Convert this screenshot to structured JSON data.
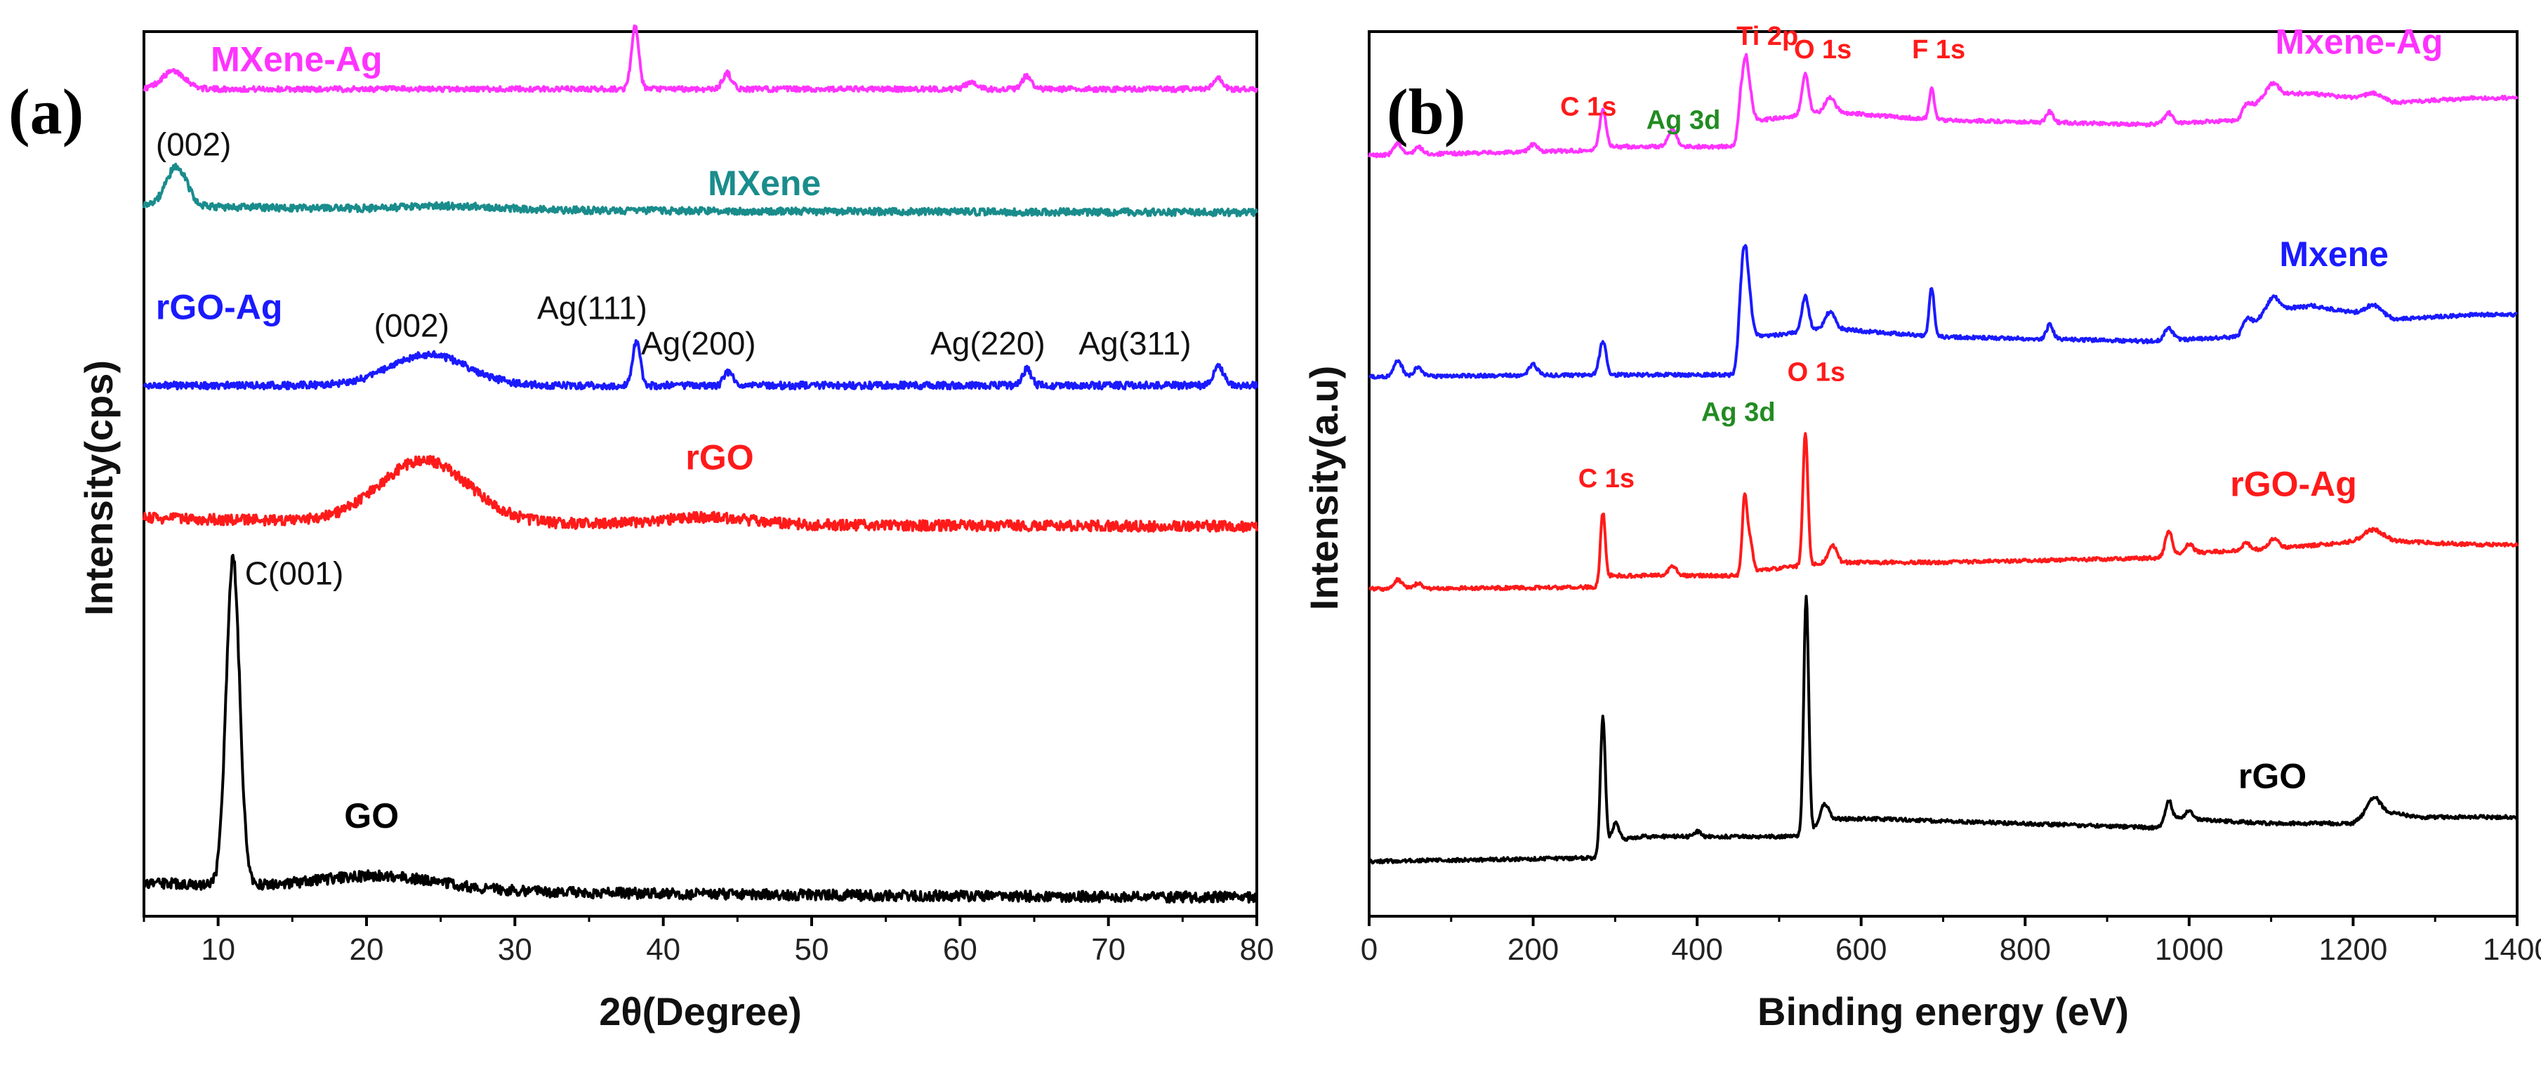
{
  "colors": {
    "black": "#000000",
    "red": "#ff1a1a",
    "blue": "#1a1aff",
    "teal": "#1a8c8c",
    "magenta": "#ff33ff",
    "green": "#228b22"
  },
  "chart_data": [
    {
      "type": "line",
      "panel_label": "(a)",
      "xlabel": "2θ(Degree)",
      "ylabel": "Intensity(cps)",
      "xlim": [
        5,
        80
      ],
      "xticks": [
        10,
        20,
        30,
        40,
        50,
        60,
        70,
        80
      ],
      "y_ticks_shown": false,
      "series": [
        {
          "name": "MXene-Ag",
          "color": "#ff33ff",
          "baseline": 0.935,
          "noise": 0.003,
          "peaks": [
            [
              7,
              0.02,
              0.8
            ],
            [
              38.1,
              0.07,
              0.25
            ],
            [
              44.3,
              0.018,
              0.3
            ],
            [
              60.8,
              0.008,
              0.4
            ],
            [
              64.5,
              0.015,
              0.3
            ],
            [
              77.4,
              0.012,
              0.3
            ]
          ],
          "tail": 0.0
        },
        {
          "name": "MXene",
          "color": "#1a8c8c",
          "baseline": 0.795,
          "noise": 0.004,
          "peaks": [
            [
              7.2,
              0.045,
              0.7
            ],
            [
              26,
              0.004,
              3
            ]
          ],
          "tail": 0.008
        },
        {
          "name": "rGO-Ag",
          "color": "#1a1aff",
          "baseline": 0.6,
          "noise": 0.004,
          "peaks": [
            [
              24.2,
              0.035,
              2.6
            ],
            [
              38.2,
              0.05,
              0.25
            ],
            [
              44.4,
              0.015,
              0.3
            ],
            [
              64.5,
              0.018,
              0.3
            ],
            [
              77.4,
              0.022,
              0.35
            ]
          ],
          "tail": 0.0
        },
        {
          "name": "rGO",
          "color": "#ff1a1a",
          "baseline": 0.44,
          "noise": 0.006,
          "peaks": [
            [
              23.9,
              0.07,
              3.0
            ],
            [
              43,
              0.008,
              3
            ]
          ],
          "tail": 0.01
        },
        {
          "name": "GO",
          "color": "#000000",
          "baseline": 0.02,
          "noise": 0.006,
          "peaks": [
            [
              11,
              0.37,
              0.45
            ],
            [
              21,
              0.015,
              4
            ]
          ],
          "tail": 0.018
        }
      ],
      "series_labels": [
        {
          "text": "MXene-Ag",
          "color": "#ff33ff",
          "x": 9.5,
          "y": 0.955
        },
        {
          "text": "MXene",
          "color": "#1a8c8c",
          "x": 43,
          "y": 0.815
        },
        {
          "text": "rGO-Ag",
          "color": "#1a1aff",
          "x": 5.8,
          "y": 0.675
        },
        {
          "text": "rGO",
          "color": "#ff1a1a",
          "x": 41.5,
          "y": 0.505
        },
        {
          "text": "GO",
          "color": "#000000",
          "x": 18.5,
          "y": 0.1
        }
      ],
      "annotations": [
        {
          "text": "(002)",
          "x": 5.8,
          "y": 0.86
        },
        {
          "text": "(002)",
          "x": 20.5,
          "y": 0.655
        },
        {
          "text": "Ag(111)",
          "x": 31.5,
          "y": 0.675
        },
        {
          "text": "Ag(200)",
          "x": 38.5,
          "y": 0.635
        },
        {
          "text": "Ag(220)",
          "x": 58,
          "y": 0.635
        },
        {
          "text": "Ag(311)",
          "x": 68,
          "y": 0.635
        },
        {
          "text": "C(001)",
          "x": 11.8,
          "y": 0.375
        }
      ]
    },
    {
      "type": "line",
      "panel_label": "(b)",
      "xlabel": "Binding energy (eV)",
      "ylabel": "Intensity(a.u)",
      "xlim": [
        0,
        1400
      ],
      "xticks": [
        0,
        200,
        400,
        600,
        800,
        1000,
        1200,
        1400
      ],
      "y_ticks_shown": false,
      "series": [
        {
          "name": "Mxene-Ag",
          "color": "#ff33ff",
          "base": [
            [
              0,
              0.86
            ],
            [
              280,
              0.866
            ],
            [
              300,
              0.87
            ],
            [
              455,
              0.87
            ],
            [
              460,
              0.905
            ],
            [
              480,
              0.9
            ],
            [
              560,
              0.91
            ],
            [
              620,
              0.905
            ],
            [
              700,
              0.9
            ],
            [
              950,
              0.895
            ],
            [
              1060,
              0.9
            ],
            [
              1095,
              0.93
            ],
            [
              1150,
              0.93
            ],
            [
              1250,
              0.92
            ],
            [
              1350,
              0.925
            ]
          ],
          "peaks": [
            [
              35,
              0.012,
              5
            ],
            [
              60,
              0.008,
              5
            ],
            [
              200,
              0.008,
              5
            ],
            [
              285,
              0.045,
              4
            ],
            [
              370,
              0.02,
              5
            ],
            [
              455,
              0.07,
              4
            ],
            [
              462,
              0.04,
              4
            ],
            [
              532,
              0.045,
              4
            ],
            [
              562,
              0.015,
              6
            ],
            [
              686,
              0.035,
              3
            ],
            [
              830,
              0.012,
              4
            ],
            [
              975,
              0.012,
              5
            ],
            [
              1070,
              0.01,
              5
            ],
            [
              1103,
              0.012,
              6
            ],
            [
              1225,
              0.008,
              10
            ]
          ]
        },
        {
          "name": "Mxene",
          "color": "#1a1aff",
          "base": [
            [
              0,
              0.61
            ],
            [
              280,
              0.612
            ],
            [
              300,
              0.612
            ],
            [
              454,
              0.612
            ],
            [
              460,
              0.66
            ],
            [
              480,
              0.655
            ],
            [
              560,
              0.665
            ],
            [
              620,
              0.66
            ],
            [
              700,
              0.655
            ],
            [
              950,
              0.65
            ],
            [
              1060,
              0.655
            ],
            [
              1095,
              0.685
            ],
            [
              1150,
              0.69
            ],
            [
              1250,
              0.675
            ],
            [
              1350,
              0.68
            ]
          ],
          "peaks": [
            [
              35,
              0.018,
              5
            ],
            [
              60,
              0.01,
              5
            ],
            [
              200,
              0.012,
              5
            ],
            [
              285,
              0.038,
              4
            ],
            [
              455,
              0.11,
              4
            ],
            [
              462,
              0.05,
              4
            ],
            [
              532,
              0.04,
              4
            ],
            [
              562,
              0.018,
              6
            ],
            [
              686,
              0.055,
              3
            ],
            [
              830,
              0.016,
              4
            ],
            [
              975,
              0.014,
              5
            ],
            [
              1070,
              0.012,
              5
            ],
            [
              1103,
              0.015,
              6
            ],
            [
              1225,
              0.012,
              10
            ]
          ]
        },
        {
          "name": "rGO-Ag",
          "color": "#ff1a1a",
          "base": [
            [
              0,
              0.37
            ],
            [
              280,
              0.372
            ],
            [
              295,
              0.385
            ],
            [
              310,
              0.385
            ],
            [
              455,
              0.385
            ],
            [
              470,
              0.39
            ],
            [
              560,
              0.4
            ],
            [
              700,
              0.4
            ],
            [
              960,
              0.405
            ],
            [
              985,
              0.41
            ],
            [
              1100,
              0.415
            ],
            [
              1220,
              0.425
            ],
            [
              1350,
              0.42
            ]
          ],
          "peaks": [
            [
              35,
              0.01,
              5
            ],
            [
              60,
              0.006,
              5
            ],
            [
              285,
              0.08,
              3
            ],
            [
              370,
              0.01,
              5
            ],
            [
              458,
              0.09,
              3
            ],
            [
              465,
              0.035,
              3
            ],
            [
              532,
              0.15,
              3
            ],
            [
              565,
              0.02,
              5
            ],
            [
              975,
              0.028,
              4
            ],
            [
              1000,
              0.01,
              5
            ],
            [
              1070,
              0.008,
              5
            ],
            [
              1103,
              0.012,
              6
            ],
            [
              1225,
              0.012,
              12
            ]
          ]
        },
        {
          "name": "rGO",
          "color": "#000000",
          "base": [
            [
              0,
              0.062
            ],
            [
              280,
              0.066
            ],
            [
              300,
              0.085
            ],
            [
              330,
              0.09
            ],
            [
              530,
              0.09
            ],
            [
              560,
              0.11
            ],
            [
              620,
              0.11
            ],
            [
              960,
              0.1
            ],
            [
              985,
              0.11
            ],
            [
              1100,
              0.105
            ],
            [
              1200,
              0.105
            ],
            [
              1225,
              0.12
            ],
            [
              1280,
              0.112
            ],
            [
              1350,
              0.112
            ]
          ],
          "peaks": [
            [
              285,
              0.155,
              3
            ],
            [
              300,
              0.02,
              5
            ],
            [
              400,
              0.006,
              4
            ],
            [
              533,
              0.27,
              3
            ],
            [
              555,
              0.02,
              5
            ],
            [
              975,
              0.025,
              4
            ],
            [
              1000,
              0.01,
              5
            ],
            [
              1225,
              0.015,
              8
            ]
          ]
        }
      ],
      "series_labels": [
        {
          "text": "Mxene-Ag",
          "color": "#ff33ff",
          "x": 1105,
          "y": 0.975
        },
        {
          "text": "Mxene",
          "color": "#1a1aff",
          "x": 1110,
          "y": 0.735
        },
        {
          "text": "rGO-Ag",
          "color": "#ff1a1a",
          "x": 1050,
          "y": 0.475
        },
        {
          "text": "rGO",
          "color": "#000000",
          "x": 1060,
          "y": 0.145
        }
      ],
      "annotations": [
        {
          "text": "C 1s",
          "x": 233,
          "y": 0.905,
          "color": "#ff1a1a"
        },
        {
          "text": "Ag 3d",
          "x": 338,
          "y": 0.89,
          "color": "#228b22"
        },
        {
          "text": "Ti 2p",
          "x": 448,
          "y": 0.985,
          "color": "#ff1a1a"
        },
        {
          "text": "O 1s",
          "x": 518,
          "y": 0.97,
          "color": "#ff1a1a"
        },
        {
          "text": "F 1s",
          "x": 662,
          "y": 0.97,
          "color": "#ff1a1a"
        },
        {
          "text": "C 1s",
          "x": 255,
          "y": 0.485,
          "color": "#ff1a1a"
        },
        {
          "text": "Ag 3d",
          "x": 405,
          "y": 0.56,
          "color": "#228b22"
        },
        {
          "text": "O 1s",
          "x": 510,
          "y": 0.605,
          "color": "#ff1a1a"
        }
      ]
    }
  ]
}
